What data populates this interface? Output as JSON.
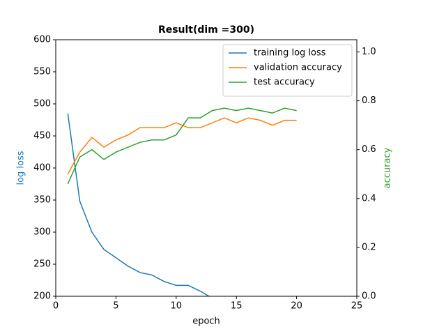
{
  "chart_data": {
    "type": "line",
    "title": "Result(dim =300)",
    "xlabel": "epoch",
    "ylabel": "log loss",
    "y2label": "accuracy",
    "ylabel_color": "#1f77b4",
    "y2label_color": "#2ca02c",
    "x": [
      1,
      2,
      3,
      4,
      5,
      6,
      7,
      8,
      9,
      10,
      11,
      12,
      13,
      14,
      15,
      16,
      17,
      18,
      19,
      20
    ],
    "series": [
      {
        "name": "training log loss",
        "color": "#1f77b4",
        "x": [
          1,
          2,
          3,
          4,
          5,
          6,
          7,
          8,
          9,
          10,
          11,
          12,
          13
        ],
        "values": [
          485,
          348,
          300,
          273,
          260,
          247,
          237,
          233,
          223,
          217,
          217,
          208,
          197
        ]
      },
      {
        "name": "validation accuracy",
        "color": "#ff7f0e",
        "axis": "y2",
        "values": [
          0.5,
          0.59,
          0.65,
          0.61,
          0.64,
          0.66,
          0.69,
          0.69,
          0.69,
          0.71,
          0.69,
          0.69,
          0.71,
          0.73,
          0.71,
          0.73,
          0.72,
          0.7,
          0.72,
          0.72
        ]
      },
      {
        "name": "test accuracy",
        "color": "#2ca02c",
        "axis": "y2",
        "values": [
          0.46,
          0.57,
          0.6,
          0.56,
          0.59,
          0.61,
          0.63,
          0.64,
          0.64,
          0.66,
          0.73,
          0.73,
          0.76,
          0.77,
          0.76,
          0.77,
          0.76,
          0.75,
          0.77,
          0.76
        ]
      }
    ],
    "xlim": [
      0,
      25
    ],
    "xticks": [
      0,
      5,
      10,
      15,
      20,
      25
    ],
    "ylim": [
      200,
      600
    ],
    "yticks": [
      200,
      250,
      300,
      350,
      400,
      450,
      500,
      550,
      600
    ],
    "y2lim": [
      0,
      1.05
    ],
    "y2ticks": [
      {
        "value": 0,
        "label": "0.0"
      },
      0.2,
      0.4,
      0.6,
      0.8,
      {
        "value": 1,
        "label": "1.0"
      }
    ],
    "legend": "upper right"
  }
}
